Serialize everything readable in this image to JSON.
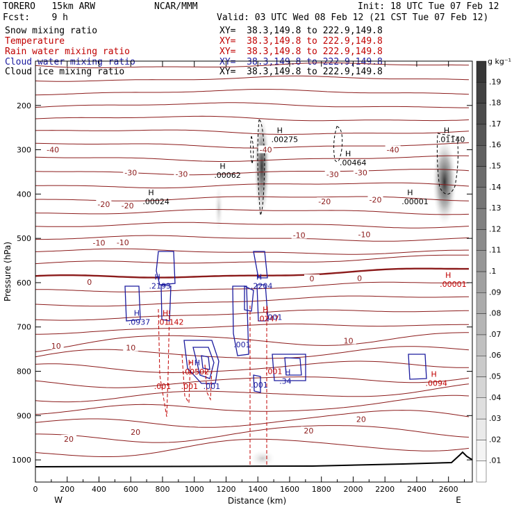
{
  "header": {
    "model": "TORERO   15km ARW",
    "center": "NCAR/MMM",
    "init": "Init: 18 UTC Tue 07 Feb 12",
    "fcst": "Fcst:    9 h",
    "valid": "Valid: 03 UTC Wed 08 Feb 12 (21 CST Tue 07 Feb 12)",
    "fields": [
      {
        "name": "Snow mixing ratio",
        "xy": "XY=  38.3,149.8 to 222.9,149.8",
        "color": "#000000"
      },
      {
        "name": "Temperature",
        "xy": "XY=  38.3,149.8 to 222.9,149.8",
        "color": "#c00000"
      },
      {
        "name": "Rain water mixing ratio",
        "xy": "XY=  38.3,149.8 to 222.9,149.8",
        "color": "#c00000"
      },
      {
        "name": "Cloud water mixing ratio",
        "xy": "XY=  38.3,149.8 to 222.9,149.8",
        "color": "#1a1a9e"
      },
      {
        "name": "Cloud ice mixing ratio",
        "xy": "XY=  38.3,149.8 to 222.9,149.8",
        "color": "#000000"
      }
    ]
  },
  "chart_data": {
    "type": "cross-section",
    "xlabel": "Distance (km)",
    "ylabel": "Pressure (hPa)",
    "x_ticks": [
      0,
      200,
      400,
      600,
      800,
      1000,
      1200,
      1400,
      1600,
      1800,
      2000,
      2200,
      2400,
      2600
    ],
    "y_ticks": [
      200,
      300,
      400,
      500,
      600,
      700,
      800,
      900,
      1000
    ],
    "xlim": [
      0,
      2750
    ],
    "ylim": [
      1050,
      100
    ],
    "left_end": "W",
    "right_end": "E",
    "colorbar": {
      "unit": "g kg⁻¹",
      "levels": [
        ".01",
        ".02",
        ".03",
        ".04",
        ".05",
        ".06",
        ".07",
        ".08",
        ".09",
        ".1",
        ".11",
        ".12",
        ".13",
        ".14",
        ".15",
        ".16",
        ".17",
        ".18",
        ".19"
      ]
    },
    "temperature_labels": [
      {
        "x": 110,
        "p": 303,
        "text": "-40"
      },
      {
        "x": 1450,
        "p": 303,
        "text": "-40"
      },
      {
        "x": 2250,
        "p": 303,
        "text": "-40"
      },
      {
        "x": 600,
        "p": 355,
        "text": "-30"
      },
      {
        "x": 920,
        "p": 358,
        "text": "-30"
      },
      {
        "x": 1870,
        "p": 359,
        "text": "-30"
      },
      {
        "x": 2050,
        "p": 355,
        "text": "-30"
      },
      {
        "x": 430,
        "p": 426,
        "text": "-20"
      },
      {
        "x": 580,
        "p": 429,
        "text": "-20"
      },
      {
        "x": 1820,
        "p": 420,
        "text": "-20"
      },
      {
        "x": 2140,
        "p": 416,
        "text": "-20"
      },
      {
        "x": 400,
        "p": 513,
        "text": "-10"
      },
      {
        "x": 550,
        "p": 512,
        "text": "-10"
      },
      {
        "x": 1660,
        "p": 496,
        "text": "-10"
      },
      {
        "x": 2070,
        "p": 494,
        "text": "-10"
      },
      {
        "x": 340,
        "p": 602,
        "text": "0"
      },
      {
        "x": 1740,
        "p": 594,
        "text": "0"
      },
      {
        "x": 2040,
        "p": 593,
        "text": "0"
      },
      {
        "x": 130,
        "p": 746,
        "text": "10"
      },
      {
        "x": 600,
        "p": 750,
        "text": "10"
      },
      {
        "x": 1970,
        "p": 734,
        "text": "10"
      },
      {
        "x": 210,
        "p": 956,
        "text": "20"
      },
      {
        "x": 630,
        "p": 940,
        "text": "20"
      },
      {
        "x": 1720,
        "p": 937,
        "text": "20"
      },
      {
        "x": 2050,
        "p": 911,
        "text": "20"
      }
    ],
    "extrema_labels": [
      {
        "x": 1520,
        "p": 265,
        "mark": "H",
        "value": ".00275",
        "color": "#000000"
      },
      {
        "x": 2570,
        "p": 265,
        "mark": "H",
        "value": ".01140",
        "color": "#000000"
      },
      {
        "x": 1950,
        "p": 318,
        "mark": "H",
        "value": ".00464",
        "color": "#000000"
      },
      {
        "x": 1160,
        "p": 346,
        "mark": "H",
        "value": ".00062",
        "color": "#000000"
      },
      {
        "x": 710,
        "p": 406,
        "mark": "H",
        "value": ".00024",
        "color": "#000000"
      },
      {
        "x": 2340,
        "p": 406,
        "mark": "H",
        "value": ".00001",
        "color": "#000000"
      },
      {
        "x": 2580,
        "p": 592,
        "mark": "H",
        "value": ".00001",
        "color": "#c00000"
      },
      {
        "x": 750,
        "p": 596,
        "mark": "H",
        "value": ".2193",
        "color": "#1a1a9e"
      },
      {
        "x": 1390,
        "p": 596,
        "mark": "H",
        "value": ".2204",
        "color": "#1a1a9e"
      },
      {
        "x": 620,
        "p": 678,
        "mark": "H",
        "value": ".0937",
        "color": "#1a1a9e"
      },
      {
        "x": 800,
        "p": 678,
        "mark": "H",
        "value": ".01142",
        "color": "#c00000"
      },
      {
        "x": 1430,
        "p": 670,
        "mark": "H",
        "value": ".0247",
        "color": "#c00000"
      },
      {
        "x": 1570,
        "p": 811,
        "mark": "H",
        "value": ".34",
        "color": "#1a1a9e"
      },
      {
        "x": 2490,
        "p": 816,
        "mark": "H",
        "value": ".0094",
        "color": "#c00000"
      },
      {
        "x": 960,
        "p": 790,
        "mark": "H",
        "value": ".00502",
        "color": "#c00000"
      },
      {
        "x": 1000,
        "p": 790,
        "mark": "H",
        "value": "",
        "color": "#1a1a9e"
      }
    ],
    "contour_value_labels": [
      {
        "x": 1500,
        "p": 684,
        "value": ".001",
        "color": "#1a1a9e"
      },
      {
        "x": 1300,
        "p": 746,
        "value": ".001",
        "color": "#1a1a9e"
      },
      {
        "x": 1410,
        "p": 837,
        "value": ".001",
        "color": "#1a1a9e"
      },
      {
        "x": 1110,
        "p": 840,
        "value": ".001",
        "color": "#1a1a9e"
      },
      {
        "x": 800,
        "p": 840,
        "value": ".001",
        "color": "#c00000"
      },
      {
        "x": 970,
        "p": 840,
        "value": ".001",
        "color": "#c00000"
      },
      {
        "x": 1500,
        "p": 806,
        "value": ".001",
        "color": "#c00000"
      }
    ]
  }
}
